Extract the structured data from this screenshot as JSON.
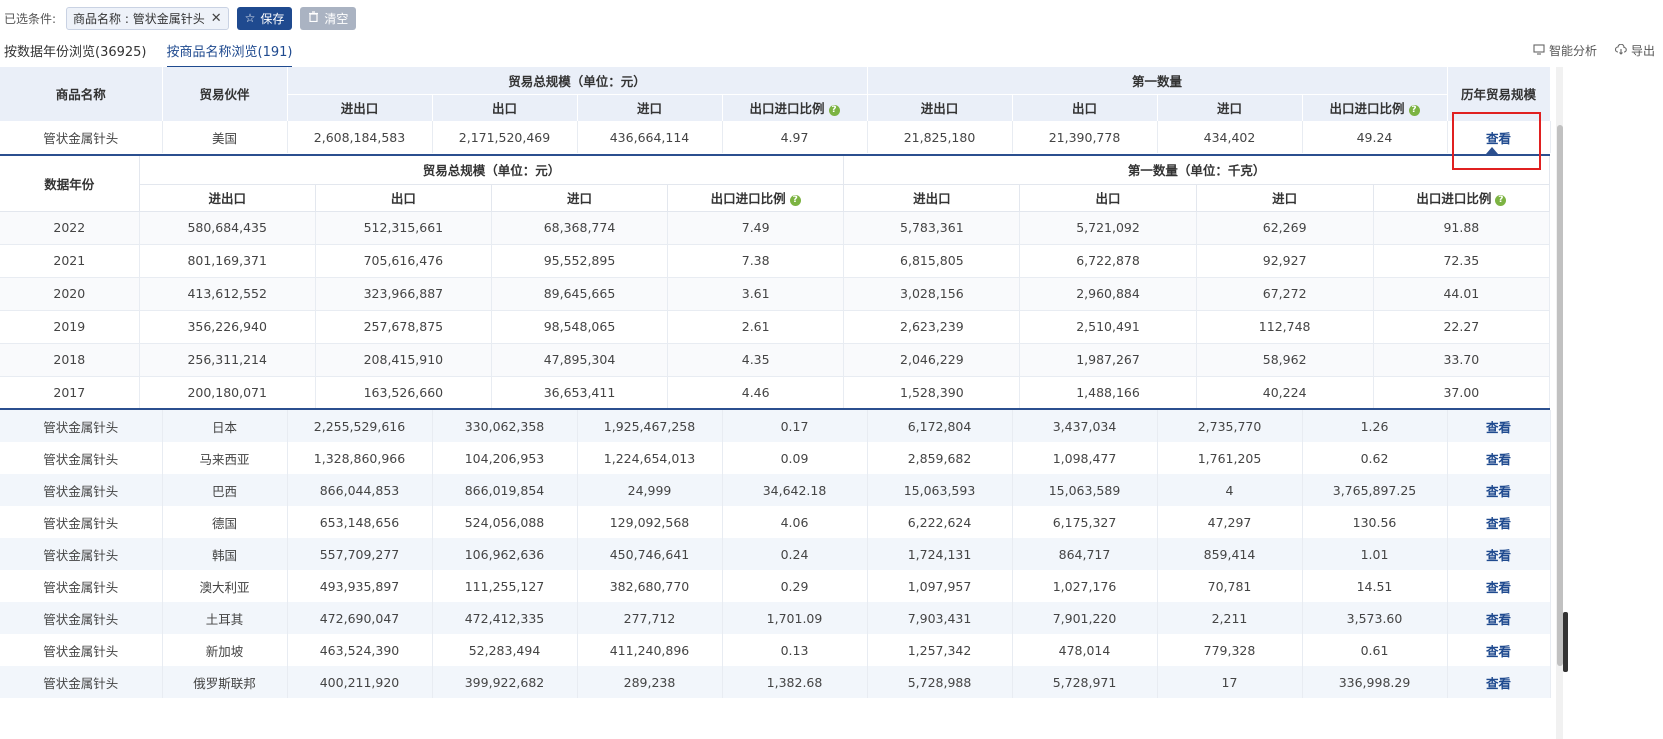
{
  "filter": {
    "label": "已选条件:",
    "chip_label": "商品名称 : 管状金属针头",
    "close_glyph": "✕",
    "save_label": "保存",
    "clear_label": "清空"
  },
  "tabs": [
    {
      "label": "按数据年份浏览(36925)"
    },
    {
      "label": "按商品名称浏览(191)"
    }
  ],
  "tools": {
    "analysis_label": "智能分析",
    "export_label": "导出"
  },
  "main_header": {
    "product": "商品名称",
    "partner": "贸易伙伴",
    "trade_group": "贸易总规模（单位：元）",
    "qty_group": "第一数量",
    "history": "历年贸易规模",
    "cols": [
      "进出口",
      "出口",
      "进口",
      "出口进口比例"
    ],
    "help_glyph": "?"
  },
  "expanded_row": {
    "product": "管状金属针头",
    "partner": "美国",
    "values": [
      "2,608,184,583",
      "2,171,520,469",
      "436,664,114",
      "4.97",
      "21,825,180",
      "21,390,778",
      "434,402",
      "49.24"
    ],
    "action": "查看"
  },
  "inner_table": {
    "year_header": "数据年份",
    "trade_group": "贸易总规模（单位：元）",
    "qty_group": "第一数量（单位：千克）",
    "cols": [
      "进出口",
      "出口",
      "进口",
      "出口进口比例"
    ],
    "rows": [
      {
        "year": "2022",
        "v": [
          "580,684,435",
          "512,315,661",
          "68,368,774",
          "7.49",
          "5,783,361",
          "5,721,092",
          "62,269",
          "91.88"
        ]
      },
      {
        "year": "2021",
        "v": [
          "801,169,371",
          "705,616,476",
          "95,552,895",
          "7.38",
          "6,815,805",
          "6,722,878",
          "92,927",
          "72.35"
        ]
      },
      {
        "year": "2020",
        "v": [
          "413,612,552",
          "323,966,887",
          "89,645,665",
          "3.61",
          "3,028,156",
          "2,960,884",
          "67,272",
          "44.01"
        ]
      },
      {
        "year": "2019",
        "v": [
          "356,226,940",
          "257,678,875",
          "98,548,065",
          "2.61",
          "2,623,239",
          "2,510,491",
          "112,748",
          "22.27"
        ]
      },
      {
        "year": "2018",
        "v": [
          "256,311,214",
          "208,415,910",
          "47,895,304",
          "4.35",
          "2,046,229",
          "1,987,267",
          "58,962",
          "33.70"
        ]
      },
      {
        "year": "2017",
        "v": [
          "200,180,071",
          "163,526,660",
          "36,653,411",
          "4.46",
          "1,528,390",
          "1,488,166",
          "40,224",
          "37.00"
        ]
      }
    ]
  },
  "rows": [
    {
      "product": "管状金属针头",
      "partner": "日本",
      "v": [
        "2,255,529,616",
        "330,062,358",
        "1,925,467,258",
        "0.17",
        "6,172,804",
        "3,437,034",
        "2,735,770",
        "1.26"
      ],
      "action": "查看"
    },
    {
      "product": "管状金属针头",
      "partner": "马来西亚",
      "v": [
        "1,328,860,966",
        "104,206,953",
        "1,224,654,013",
        "0.09",
        "2,859,682",
        "1,098,477",
        "1,761,205",
        "0.62"
      ],
      "action": "查看"
    },
    {
      "product": "管状金属针头",
      "partner": "巴西",
      "v": [
        "866,044,853",
        "866,019,854",
        "24,999",
        "34,642.18",
        "15,063,593",
        "15,063,589",
        "4",
        "3,765,897.25"
      ],
      "action": "查看"
    },
    {
      "product": "管状金属针头",
      "partner": "德国",
      "v": [
        "653,148,656",
        "524,056,088",
        "129,092,568",
        "4.06",
        "6,222,624",
        "6,175,327",
        "47,297",
        "130.56"
      ],
      "action": "查看"
    },
    {
      "product": "管状金属针头",
      "partner": "韩国",
      "v": [
        "557,709,277",
        "106,962,636",
        "450,746,641",
        "0.24",
        "1,724,131",
        "864,717",
        "859,414",
        "1.01"
      ],
      "action": "查看"
    },
    {
      "product": "管状金属针头",
      "partner": "澳大利亚",
      "v": [
        "493,935,897",
        "111,255,127",
        "382,680,770",
        "0.29",
        "1,097,957",
        "1,027,176",
        "70,781",
        "14.51"
      ],
      "action": "查看"
    },
    {
      "product": "管状金属针头",
      "partner": "土耳其",
      "v": [
        "472,690,047",
        "472,412,335",
        "277,712",
        "1,701.09",
        "7,903,431",
        "7,901,220",
        "2,211",
        "3,573.60"
      ],
      "action": "查看"
    },
    {
      "product": "管状金属针头",
      "partner": "新加坡",
      "v": [
        "463,524,390",
        "52,283,494",
        "411,240,896",
        "0.13",
        "1,257,342",
        "478,014",
        "779,328",
        "0.61"
      ],
      "action": "查看"
    },
    {
      "product": "管状金属针头",
      "partner": "俄罗斯联邦",
      "v": [
        "400,211,920",
        "399,922,682",
        "289,238",
        "1,382.68",
        "5,728,988",
        "5,728,971",
        "17",
        "336,998.29"
      ],
      "action": "查看"
    }
  ]
}
